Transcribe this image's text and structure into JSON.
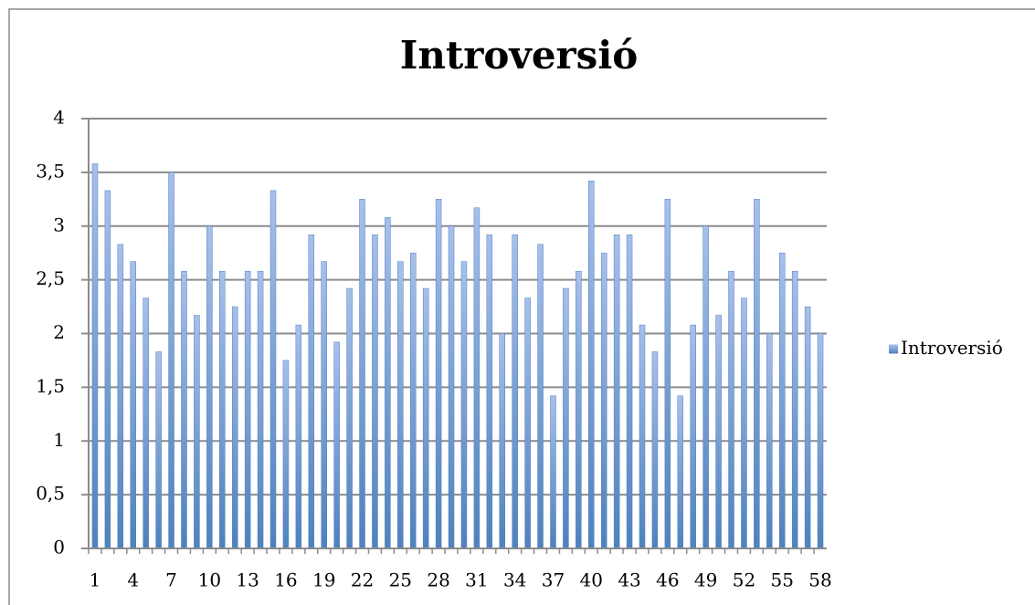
{
  "chart_data": {
    "type": "bar",
    "title": "Introversió",
    "categories": [
      "1",
      null,
      null,
      "4",
      null,
      null,
      "7",
      null,
      null,
      "10",
      null,
      null,
      "13",
      null,
      null,
      "16",
      null,
      null,
      "19",
      null,
      null,
      "22",
      null,
      null,
      "25",
      null,
      null,
      "28",
      null,
      null,
      "31",
      null,
      null,
      "34",
      null,
      null,
      "37",
      null,
      null,
      "40",
      null,
      null,
      "43",
      null,
      null,
      "46",
      null,
      null,
      "49",
      null,
      null,
      "52",
      null,
      null,
      "55",
      null,
      null,
      "58"
    ],
    "series": [
      {
        "name": "Introversió",
        "color": "#4f81bd",
        "values": [
          3.58,
          3.33,
          2.83,
          2.67,
          2.33,
          1.83,
          3.5,
          2.58,
          2.17,
          3.0,
          2.58,
          2.25,
          2.58,
          2.58,
          3.33,
          1.75,
          2.08,
          2.92,
          2.67,
          1.92,
          2.42,
          3.25,
          2.92,
          3.08,
          2.67,
          2.75,
          2.42,
          3.25,
          3.0,
          2.67,
          3.17,
          2.92,
          2.0,
          2.92,
          2.33,
          2.83,
          1.42,
          2.42,
          2.58,
          3.42,
          2.75,
          2.92,
          2.92,
          2.08,
          1.83,
          3.25,
          1.42,
          2.08,
          3.0,
          2.17,
          2.58,
          2.33,
          3.25,
          2.0,
          2.75,
          2.58,
          2.25,
          2.0
        ]
      }
    ],
    "ylim": [
      0,
      4
    ],
    "yticks": [
      0,
      {
        "value": 0.5,
        "label": "0,5"
      },
      1,
      {
        "value": 1.5,
        "label": "1,5"
      },
      2,
      {
        "value": 2.5,
        "label": "2,5"
      },
      3,
      {
        "value": 3.5,
        "label": "3,5"
      },
      4
    ],
    "grid": true,
    "legend": "right"
  }
}
